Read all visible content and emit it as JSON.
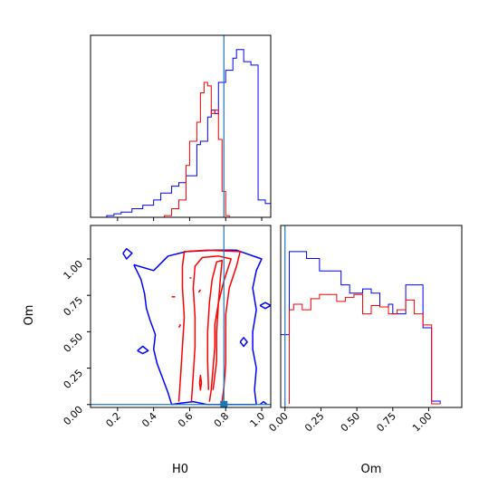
{
  "chart_data": [
    {
      "type": "histogram",
      "panel": "H0 marginal",
      "xlim": [
        0.05,
        1.05
      ],
      "truth": 0.79,
      "series": [
        {
          "color": "#0000ff",
          "bins": [
            [
              0.14,
              0.18,
              0.01
            ],
            [
              0.18,
              0.22,
              0.02
            ],
            [
              0.22,
              0.28,
              0.03
            ],
            [
              0.28,
              0.34,
              0.05
            ],
            [
              0.34,
              0.4,
              0.07
            ],
            [
              0.4,
              0.44,
              0.1
            ],
            [
              0.44,
              0.5,
              0.14
            ],
            [
              0.5,
              0.54,
              0.18
            ],
            [
              0.54,
              0.58,
              0.2
            ],
            [
              0.58,
              0.64,
              0.24
            ],
            [
              0.64,
              0.66,
              0.42
            ],
            [
              0.66,
              0.7,
              0.44
            ],
            [
              0.7,
              0.72,
              0.58
            ],
            [
              0.72,
              0.74,
              0.62
            ],
            [
              0.74,
              0.76,
              0.6
            ],
            [
              0.76,
              0.8,
              0.78
            ],
            [
              0.8,
              0.84,
              0.85
            ],
            [
              0.84,
              0.86,
              0.92
            ],
            [
              0.86,
              0.9,
              0.97
            ],
            [
              0.9,
              0.94,
              0.9
            ],
            [
              0.94,
              0.98,
              0.88
            ],
            [
              0.98,
              1.02,
              0.1
            ],
            [
              1.02,
              1.05,
              0.08
            ]
          ]
        },
        {
          "color": "#ff0000",
          "bins": [
            [
              0.46,
              0.5,
              0.01
            ],
            [
              0.5,
              0.54,
              0.05
            ],
            [
              0.54,
              0.58,
              0.1
            ],
            [
              0.58,
              0.6,
              0.3
            ],
            [
              0.6,
              0.64,
              0.44
            ],
            [
              0.64,
              0.66,
              0.55
            ],
            [
              0.66,
              0.68,
              0.72
            ],
            [
              0.68,
              0.7,
              0.78
            ],
            [
              0.7,
              0.72,
              0.76
            ],
            [
              0.72,
              0.74,
              0.6
            ],
            [
              0.74,
              0.76,
              0.62
            ],
            [
              0.76,
              0.78,
              0.45
            ],
            [
              0.78,
              0.8,
              0.15
            ],
            [
              0.8,
              0.82,
              0.01
            ]
          ]
        }
      ]
    },
    {
      "type": "contour",
      "panel": "H0 vs Om",
      "xlabel": "H0",
      "ylabel": "Om",
      "xlim": [
        0.05,
        1.05
      ],
      "ylim": [
        -0.02,
        1.23
      ],
      "xticks": [
        "0.2",
        "0.4",
        "0.6",
        "0.8",
        "1.0"
      ],
      "yticks": [
        "0.00",
        "0.25",
        "0.50",
        "0.75",
        "1.00"
      ],
      "truth": [
        0.79,
        0.0
      ],
      "series": [
        {
          "color": "#0000ff",
          "contours": [
            [
              [
                0.23,
                1.04
              ],
              [
                0.25,
                1.0
              ],
              [
                0.28,
                1.04
              ],
              [
                0.25,
                1.07
              ],
              [
                0.23,
                1.04
              ]
            ],
            [
              [
                0.29,
                0.96
              ],
              [
                0.4,
                0.92
              ],
              [
                0.48,
                1.02
              ],
              [
                0.58,
                1.05
              ],
              [
                0.74,
                1.06
              ],
              [
                0.86,
                1.06
              ],
              [
                1.0,
                1.0
              ],
              [
                0.97,
                0.92
              ],
              [
                0.95,
                0.8
              ],
              [
                0.97,
                0.65
              ],
              [
                0.95,
                0.5
              ],
              [
                0.95,
                0.38
              ],
              [
                0.97,
                0.25
              ],
              [
                0.96,
                0.1
              ],
              [
                0.97,
                0.0
              ],
              [
                0.84,
                0.0
              ],
              [
                0.7,
                0.0
              ],
              [
                0.62,
                0.02
              ],
              [
                0.55,
                0.01
              ],
              [
                0.5,
                0.0
              ],
              [
                0.48,
                0.08
              ],
              [
                0.45,
                0.18
              ],
              [
                0.42,
                0.28
              ],
              [
                0.4,
                0.38
              ],
              [
                0.41,
                0.48
              ],
              [
                0.38,
                0.58
              ],
              [
                0.36,
                0.66
              ],
              [
                0.35,
                0.76
              ],
              [
                0.33,
                0.86
              ],
              [
                0.29,
                0.96
              ]
            ],
            [
              [
                0.99,
                0.68
              ],
              [
                1.02,
                0.7
              ],
              [
                1.05,
                0.68
              ],
              [
                1.02,
                0.66
              ],
              [
                0.99,
                0.68
              ]
            ],
            [
              [
                0.31,
                0.37
              ],
              [
                0.34,
                0.35
              ],
              [
                0.37,
                0.37
              ],
              [
                0.34,
                0.4
              ],
              [
                0.31,
                0.37
              ]
            ],
            [
              [
                0.88,
                0.43
              ],
              [
                0.9,
                0.4
              ],
              [
                0.92,
                0.43
              ],
              [
                0.9,
                0.46
              ],
              [
                0.88,
                0.43
              ]
            ],
            [
              [
                0.99,
                0.0
              ],
              [
                1.01,
                0.02
              ],
              [
                1.03,
                0.0
              ]
            ]
          ]
        },
        {
          "color": "#ff0000",
          "contours": [
            [
              [
                0.54,
                0.02
              ],
              [
                0.55,
                0.2
              ],
              [
                0.56,
                0.4
              ],
              [
                0.57,
                0.6
              ],
              [
                0.56,
                0.8
              ],
              [
                0.56,
                0.95
              ],
              [
                0.57,
                1.05
              ],
              [
                0.7,
                1.06
              ],
              [
                0.88,
                1.05
              ],
              [
                0.86,
                0.95
              ],
              [
                0.82,
                0.8
              ],
              [
                0.8,
                0.62
              ],
              [
                0.8,
                0.45
              ],
              [
                0.8,
                0.28
              ],
              [
                0.79,
                0.12
              ],
              [
                0.78,
                0.02
              ]
            ],
            [
              [
                0.61,
                0.02
              ],
              [
                0.62,
                0.2
              ],
              [
                0.63,
                0.4
              ],
              [
                0.63,
                0.6
              ],
              [
                0.62,
                0.8
              ],
              [
                0.63,
                0.95
              ],
              [
                0.67,
                1.01
              ],
              [
                0.76,
                1.02
              ],
              [
                0.83,
                1.0
              ],
              [
                0.79,
                0.85
              ],
              [
                0.76,
                0.7
              ],
              [
                0.74,
                0.55
              ],
              [
                0.74,
                0.4
              ],
              [
                0.73,
                0.25
              ],
              [
                0.72,
                0.1
              ],
              [
                0.71,
                0.02
              ]
            ],
            [
              [
                0.655,
                0.15
              ],
              [
                0.66,
                0.2
              ],
              [
                0.665,
                0.15
              ],
              [
                0.66,
                0.1
              ],
              [
                0.655,
                0.15
              ]
            ],
            [
              [
                0.705,
                0.1
              ],
              [
                0.7,
                0.3
              ],
              [
                0.7,
                0.5
              ],
              [
                0.71,
                0.7
              ],
              [
                0.725,
                0.86
              ],
              [
                0.75,
                0.98
              ],
              [
                0.78,
                0.99
              ],
              [
                0.77,
                0.86
              ],
              [
                0.76,
                0.7
              ],
              [
                0.75,
                0.5
              ],
              [
                0.75,
                0.3
              ],
              [
                0.73,
                0.1
              ]
            ],
            [
              [
                0.5,
                0.74
              ],
              [
                0.52,
                0.74
              ]
            ],
            [
              [
                0.6,
                0.87
              ],
              [
                0.61,
                0.87
              ]
            ],
            [
              [
                0.54,
                0.53
              ],
              [
                0.55,
                0.55
              ]
            ],
            [
              [
                0.65,
                0.77
              ],
              [
                0.66,
                0.79
              ]
            ]
          ]
        }
      ]
    },
    {
      "type": "histogram",
      "panel": "Om marginal",
      "xlabel": "Om",
      "xlim": [
        -0.03,
        1.23
      ],
      "xticks": [
        "0.00",
        "0.25",
        "0.50",
        "0.75",
        "1.00"
      ],
      "truth": 0.0,
      "series": [
        {
          "color": "#0000ff",
          "bins": [
            [
              -0.03,
              0.03,
              0.5
            ],
            [
              0.03,
              0.15,
              1.1
            ],
            [
              0.15,
              0.24,
              1.05
            ],
            [
              0.24,
              0.39,
              0.96
            ],
            [
              0.39,
              0.45,
              0.86
            ],
            [
              0.45,
              0.54,
              0.8
            ],
            [
              0.54,
              0.6,
              0.83
            ],
            [
              0.6,
              0.66,
              0.8
            ],
            [
              0.66,
              0.72,
              0.7
            ],
            [
              0.72,
              0.75,
              0.72
            ],
            [
              0.75,
              0.84,
              0.65
            ],
            [
              0.84,
              0.96,
              0.86
            ],
            [
              0.96,
              1.02,
              0.55
            ],
            [
              1.02,
              1.08,
              0.02
            ]
          ]
        },
        {
          "color": "#ff0000",
          "bins": [
            [
              0.03,
              0.06,
              0.68
            ],
            [
              0.06,
              0.12,
              0.72
            ],
            [
              0.12,
              0.18,
              0.68
            ],
            [
              0.18,
              0.24,
              0.76
            ],
            [
              0.24,
              0.36,
              0.79
            ],
            [
              0.36,
              0.42,
              0.74
            ],
            [
              0.42,
              0.48,
              0.77
            ],
            [
              0.48,
              0.54,
              0.79
            ],
            [
              0.54,
              0.6,
              0.65
            ],
            [
              0.6,
              0.66,
              0.71
            ],
            [
              0.66,
              0.72,
              0.7
            ],
            [
              0.72,
              0.78,
              0.65
            ],
            [
              0.78,
              0.84,
              0.68
            ],
            [
              0.84,
              0.9,
              0.75
            ],
            [
              0.9,
              0.96,
              0.65
            ],
            [
              0.96,
              1.02,
              0.57
            ],
            [
              1.02,
              1.08,
              0.0
            ]
          ]
        }
      ]
    }
  ],
  "colors": {
    "truth_line": "#1f77b4",
    "frame": "#000000"
  }
}
